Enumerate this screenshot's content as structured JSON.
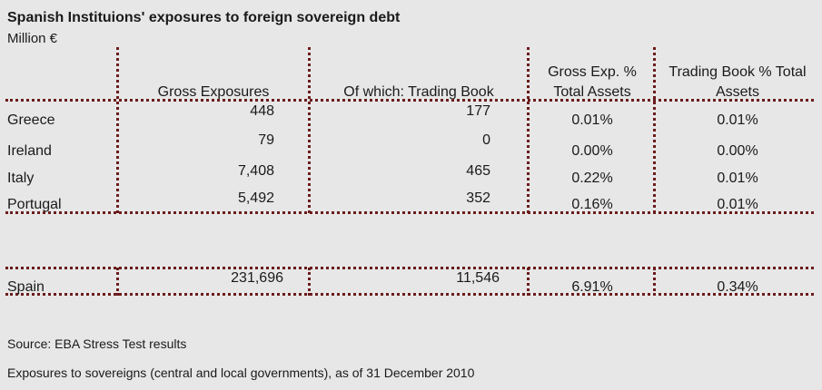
{
  "title": "Spanish Instituions' exposures to foreign sovereign debt",
  "unit": "Million €",
  "columns": {
    "gross": "Gross Exposures",
    "trading": "Of which: Trading Book",
    "gross_pct_line1": "Gross Exp. %",
    "gross_pct_line2": "Total Assets",
    "trading_pct_line1": "Trading Book % Total",
    "trading_pct_line2": "Assets"
  },
  "rows": [
    {
      "country": "Greece",
      "gross": "448",
      "trading": "177",
      "gross_pct": "0.01%",
      "trading_pct": "0.01%"
    },
    {
      "country": "Ireland",
      "gross": "79",
      "trading": "0",
      "gross_pct": "0.00%",
      "trading_pct": "0.00%"
    },
    {
      "country": "Italy",
      "gross": "7,408",
      "trading": "465",
      "gross_pct": "0.22%",
      "trading_pct": "0.01%"
    },
    {
      "country": "Portugal",
      "gross": "5,492",
      "trading": "352",
      "gross_pct": "0.16%",
      "trading_pct": "0.01%"
    }
  ],
  "total": {
    "country": "Spain",
    "gross": "231,696",
    "trading": "11,546",
    "gross_pct": "6.91%",
    "trading_pct": "0.34%"
  },
  "notes": {
    "source": "Source: EBA Stress Test results",
    "scope": "Exposures to sovereigns (central and local governments), as of 31 December 2010"
  }
}
